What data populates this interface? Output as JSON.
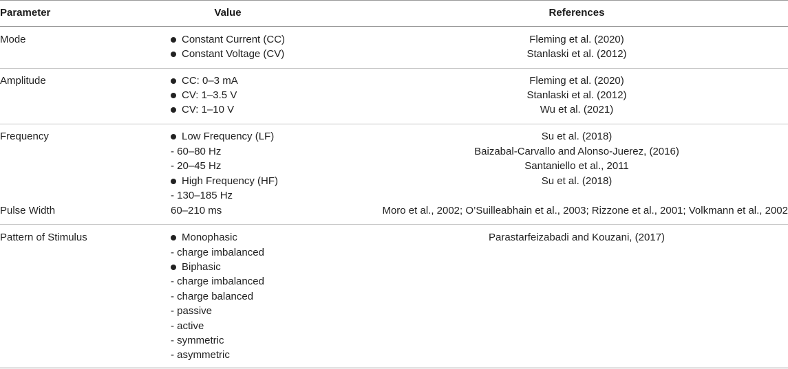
{
  "header": {
    "parameter": "Parameter",
    "value": "Value",
    "references": "References"
  },
  "rows": [
    {
      "parameter": "Mode",
      "values": [
        "Constant Current (CC)",
        "Constant Voltage (CV)"
      ],
      "references": [
        "Fleming et al. (2020)",
        "Stanlaski et al. (2012)"
      ]
    },
    {
      "parameter": "Amplitude",
      "values": [
        "CC: 0–3 mA",
        "CV: 1–3.5 V",
        "CV: 1–10 V"
      ],
      "references": [
        "Fleming et al. (2020)",
        "Stanlaski et al. (2012)",
        "Wu et al. (2021)"
      ]
    },
    {
      "parameter": "Frequency",
      "values": [
        "Low Frequency (LF)",
        "- 60–80 Hz",
        "- 20–45 Hz",
        "High Frequency (HF)",
        "- 130–185 Hz"
      ],
      "references": [
        "Su et al. (2018)",
        "Baizabal-Carvallo and Alonso-Juerez, (2016)",
        "Santaniello et al., 2011",
        "Su et al. (2018)"
      ]
    },
    {
      "parameter": "Pulse Width",
      "values": [
        "60–210 ms"
      ],
      "references": [
        "Moro et al., 2002; O’Suilleabhain et al., 2003; Rizzone et al., 2001; Volkmann et al., 2002"
      ]
    },
    {
      "parameter": "Pattern of Stimulus",
      "values": [
        "Monophasic",
        "- charge imbalanced",
        "Biphasic",
        "- charge imbalanced",
        "- charge balanced",
        "- passive",
        "- active",
        "- symmetric",
        "- asymmetric"
      ],
      "references": [
        "Parastarfeizabadi and Kouzani, (2017)"
      ]
    }
  ]
}
